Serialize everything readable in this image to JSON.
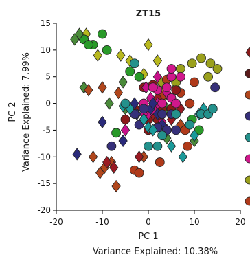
{
  "chart_data": {
    "type": "scatter",
    "title": "ZT15",
    "xlabel": "PC 1",
    "xlabel_sub": "Variance Explained: 10.38%",
    "ylabel": "PC 2",
    "ylabel_sub": "Variance Explained: 7.99%",
    "xlim": [
      -20,
      20
    ],
    "ylim": [
      -20,
      15
    ],
    "xticks": [
      "-20",
      "-10",
      "0",
      "10",
      "20"
    ],
    "yticks": [
      "15",
      "10",
      "5",
      "0",
      "-5",
      "-10",
      "-15",
      "-20"
    ],
    "grid": false,
    "legend": "right (cropped)",
    "series": [
      {
        "marker": "diamond",
        "color": "#b8b81e",
        "points": [
          [
            -13.5,
            13
          ],
          [
            -11,
            9
          ],
          [
            -6,
            9
          ],
          [
            -4,
            8
          ],
          [
            0,
            11
          ],
          [
            -1,
            5.5
          ],
          [
            2,
            8
          ],
          [
            3,
            2
          ],
          [
            6,
            3
          ],
          [
            5,
            -1
          ]
        ]
      },
      {
        "marker": "circle",
        "color": "#9aa01c",
        "points": [
          [
            7,
            6.5
          ],
          [
            9.5,
            7.5
          ],
          [
            11.5,
            8.5
          ],
          [
            13.5,
            7.5
          ],
          [
            15,
            6.5
          ],
          [
            13,
            5
          ],
          [
            3,
            4
          ],
          [
            6,
            4
          ],
          [
            2.5,
            -1
          ],
          [
            3,
            1
          ]
        ]
      },
      {
        "marker": "circle",
        "color": "#2a9a2a",
        "points": [
          [
            -14,
            12
          ],
          [
            -12,
            11
          ],
          [
            -10,
            13
          ],
          [
            -13,
            11
          ],
          [
            -9,
            10
          ],
          [
            -4,
            6
          ],
          [
            -7,
            -5.5
          ],
          [
            9.5,
            -3
          ],
          [
            11,
            -5
          ],
          [
            -2,
            5
          ]
        ]
      },
      {
        "marker": "diamond",
        "color": "#4a8a3a",
        "points": [
          [
            -15,
            13
          ],
          [
            -16,
            12
          ],
          [
            -14,
            3
          ],
          [
            -8.5,
            0
          ],
          [
            -5.5,
            4
          ],
          [
            -5,
            -1
          ],
          [
            2,
            -1
          ],
          [
            4,
            -1
          ],
          [
            10,
            -7
          ],
          [
            4,
            -6.5
          ]
        ]
      },
      {
        "marker": "diamond",
        "color": "#b0461c",
        "points": [
          [
            -13,
            2.5
          ],
          [
            -10,
            3
          ],
          [
            -6.5,
            2
          ],
          [
            -12,
            -10
          ],
          [
            -10.5,
            -13
          ],
          [
            -9.5,
            -12
          ],
          [
            -7,
            -15.5
          ],
          [
            -1,
            -10
          ],
          [
            7,
            -4
          ],
          [
            -8,
            -11
          ]
        ]
      },
      {
        "marker": "circle",
        "color": "#b03a1a",
        "points": [
          [
            3,
            1.5
          ],
          [
            4,
            4.5
          ],
          [
            7,
            2
          ],
          [
            8,
            -5
          ],
          [
            9,
            0
          ],
          [
            -3,
            -12.5
          ],
          [
            -2,
            -13
          ],
          [
            2.5,
            -11
          ],
          [
            8.5,
            -8
          ],
          [
            10,
            4
          ]
        ]
      },
      {
        "marker": "circle",
        "color": "#8a1a1a",
        "points": [
          [
            -1,
            3
          ],
          [
            1,
            3.5
          ],
          [
            6,
            2.5
          ],
          [
            3,
            -1
          ],
          [
            0,
            -5
          ],
          [
            -5,
            -3
          ],
          [
            0,
            -3
          ],
          [
            2,
            -3
          ],
          [
            5,
            -1
          ],
          [
            -3,
            -1
          ]
        ]
      },
      {
        "marker": "diamond",
        "color": "#9a1a22",
        "points": [
          [
            -9,
            -11
          ],
          [
            -7.5,
            -12
          ],
          [
            -2,
            -10
          ],
          [
            4,
            -5
          ],
          [
            -4,
            -1
          ],
          [
            1,
            -2
          ],
          [
            5,
            -3
          ],
          [
            7,
            -1
          ],
          [
            -1,
            -1
          ],
          [
            2,
            1
          ]
        ]
      },
      {
        "marker": "diamond",
        "color": "#c8108a",
        "points": [
          [
            -5,
            -5
          ],
          [
            -0.5,
            3
          ],
          [
            0,
            -2
          ],
          [
            1,
            -1
          ],
          [
            2,
            0
          ],
          [
            3,
            -3.5
          ],
          [
            4,
            2
          ],
          [
            0.5,
            1
          ],
          [
            -1,
            -2
          ],
          [
            2,
            5
          ]
        ]
      },
      {
        "marker": "circle",
        "color": "#d0188c",
        "points": [
          [
            5,
            5
          ],
          [
            7,
            5
          ],
          [
            5,
            6.5
          ],
          [
            2,
            2.5
          ],
          [
            3,
            0
          ],
          [
            4,
            3
          ],
          [
            5,
            1
          ],
          [
            -1,
            0
          ],
          [
            1,
            3
          ],
          [
            6,
            0
          ]
        ]
      },
      {
        "marker": "diamond",
        "color": "#2a2a7a",
        "points": [
          [
            -15.5,
            -9.5
          ],
          [
            -10,
            -3.5
          ],
          [
            -5.5,
            -7
          ],
          [
            -2.5,
            -2
          ],
          [
            -1,
            -3
          ],
          [
            0.5,
            -1
          ],
          [
            2,
            -2
          ],
          [
            3,
            -4
          ],
          [
            -3,
            0
          ],
          [
            1,
            0
          ]
        ]
      },
      {
        "marker": "circle",
        "color": "#36307a",
        "points": [
          [
            -8,
            -8
          ],
          [
            -3,
            -2
          ],
          [
            2,
            -4.5
          ],
          [
            4,
            -5
          ],
          [
            -1,
            -1
          ],
          [
            6,
            -5
          ],
          [
            14.5,
            3
          ],
          [
            3,
            -2
          ],
          [
            -2,
            -4
          ],
          [
            5,
            -2
          ]
        ]
      },
      {
        "marker": "diamond",
        "color": "#1a9a9a",
        "points": [
          [
            -5.5,
            -0.5
          ],
          [
            -4,
            -1
          ],
          [
            -1,
            -3
          ],
          [
            0,
            -4.5
          ],
          [
            1,
            -5
          ],
          [
            5,
            -8
          ],
          [
            7.5,
            -10
          ],
          [
            10,
            -6
          ],
          [
            11,
            -2
          ],
          [
            12,
            -1
          ]
        ]
      },
      {
        "marker": "circle",
        "color": "#24918c",
        "points": [
          [
            -3,
            7.5
          ],
          [
            -5,
            0
          ],
          [
            0,
            -8
          ],
          [
            2,
            -8
          ],
          [
            6,
            -2
          ],
          [
            9,
            -4
          ],
          [
            11.5,
            -2
          ],
          [
            13,
            -2
          ],
          [
            14,
            -1
          ],
          [
            3,
            -6
          ]
        ]
      }
    ]
  }
}
